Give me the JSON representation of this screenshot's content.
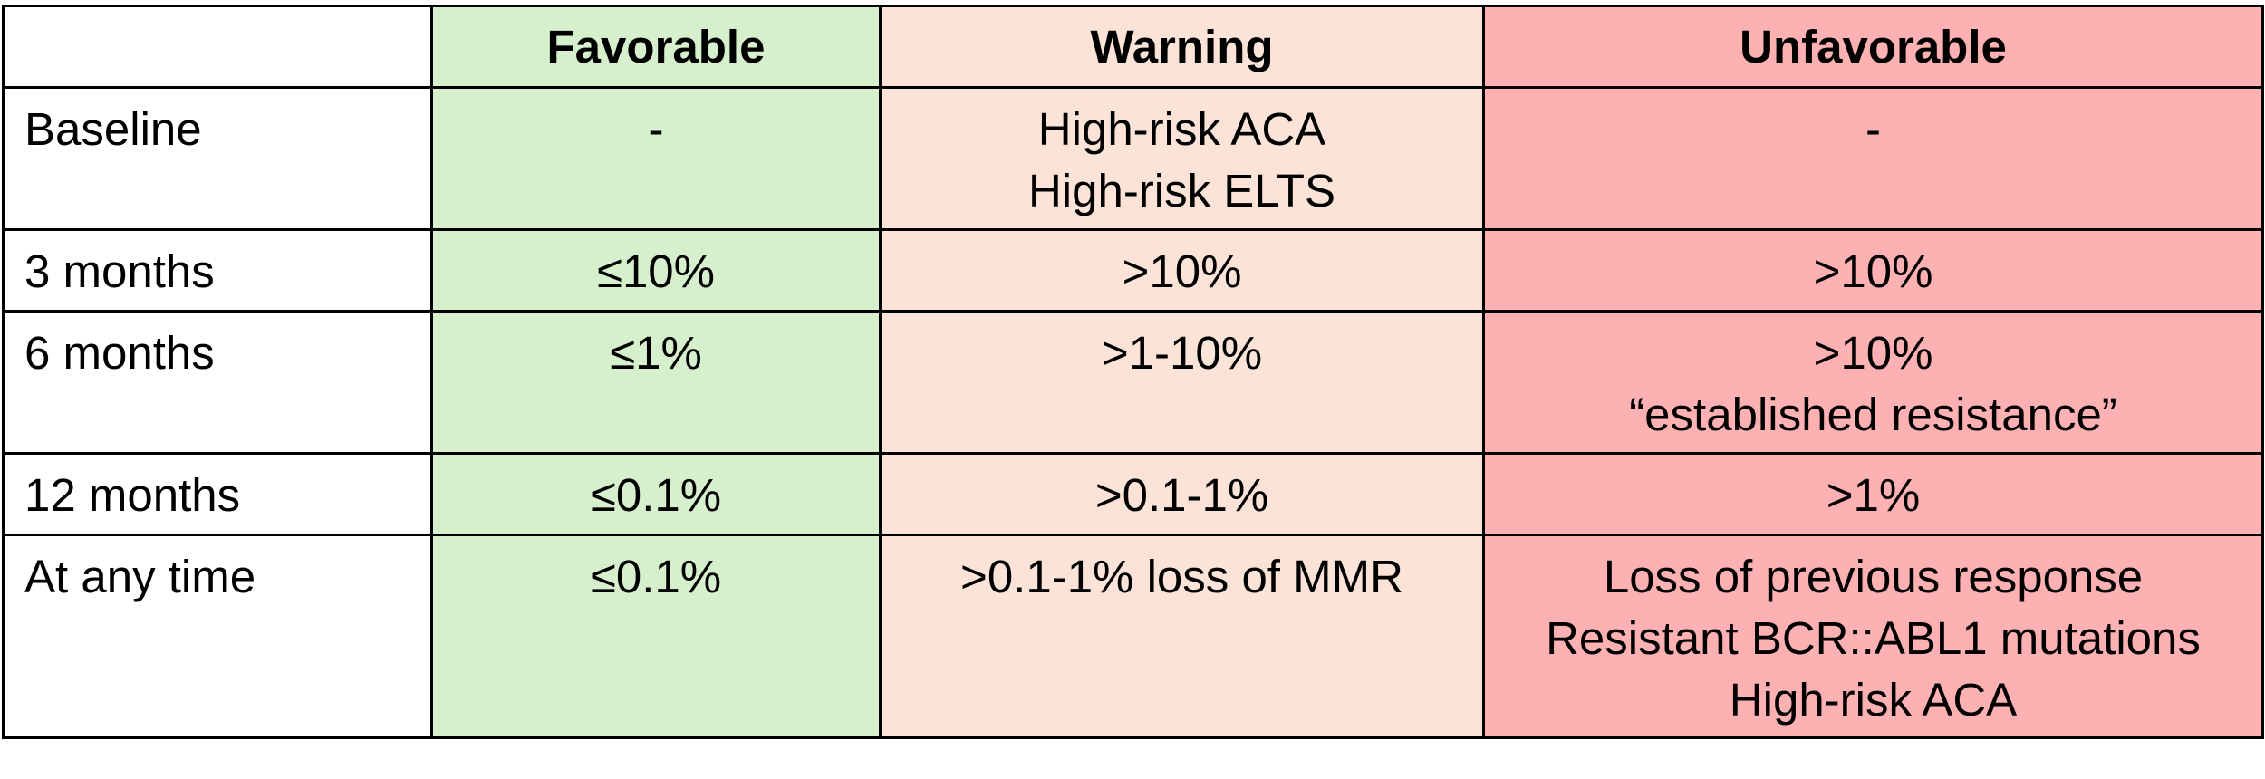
{
  "colors": {
    "favorable_bg": "#d6f0cd",
    "warning_bg": "#fbe3d8",
    "unfavorable_bg": "#fdb1b2",
    "border": "#000000"
  },
  "header": {
    "corner": "",
    "favorable": "Favorable",
    "warning": "Warning",
    "unfavorable": "Unfavorable"
  },
  "rows": [
    {
      "label": "Baseline",
      "favorable": [
        "-"
      ],
      "warning": [
        "High-risk ACA",
        "High-risk ELTS"
      ],
      "unfavorable": [
        "-"
      ]
    },
    {
      "label": "3 months",
      "favorable": [
        "≤10%"
      ],
      "warning": [
        ">10%"
      ],
      "unfavorable": [
        ">10%"
      ]
    },
    {
      "label": "6 months",
      "favorable": [
        "≤1%"
      ],
      "warning": [
        ">1-10%"
      ],
      "unfavorable": [
        ">10%",
        "“established resistance”"
      ]
    },
    {
      "label": "12 months",
      "favorable": [
        "≤0.1%"
      ],
      "warning": [
        ">0.1-1%"
      ],
      "unfavorable": [
        ">1%"
      ]
    },
    {
      "label": "At any time",
      "favorable": [
        "≤0.1%"
      ],
      "warning": [
        ">0.1-1% loss of MMR"
      ],
      "unfavorable": [
        "Loss of previous response",
        "Resistant BCR::ABL1 mutations",
        "High-risk ACA"
      ]
    }
  ]
}
